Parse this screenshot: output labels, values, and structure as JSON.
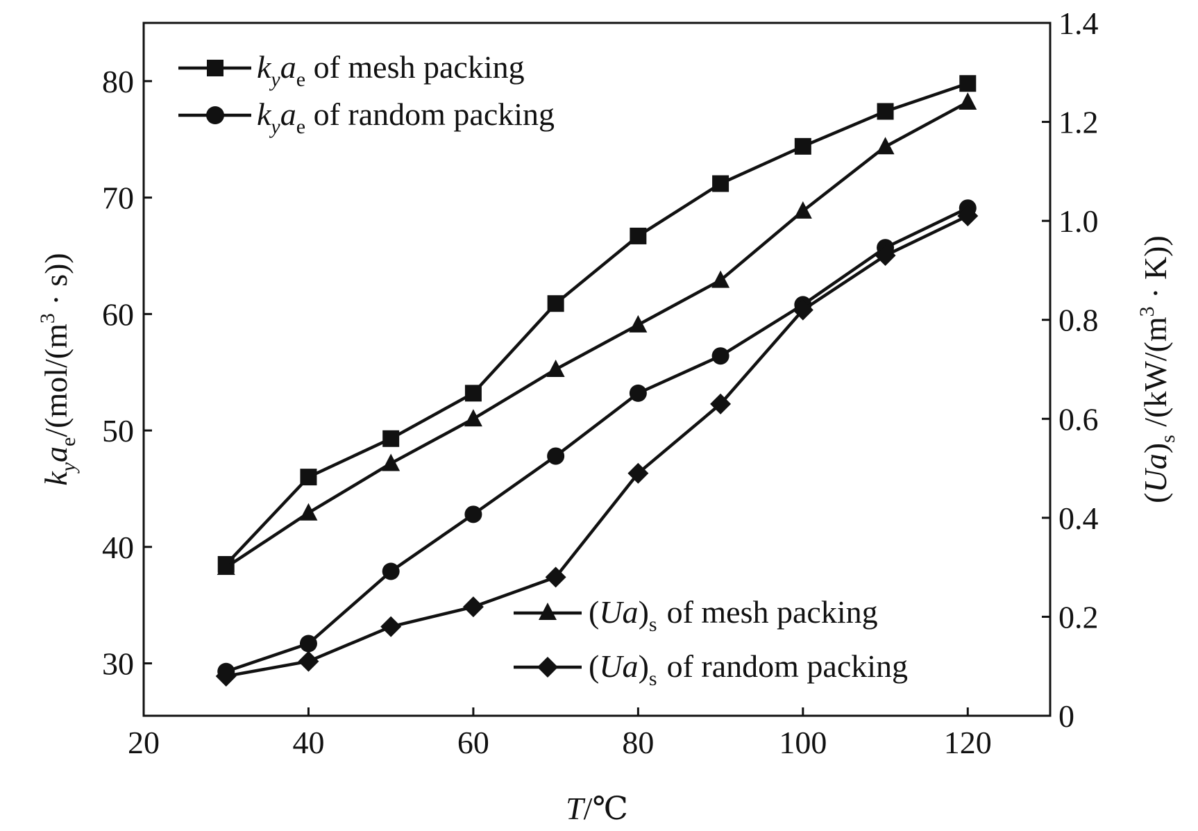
{
  "chart_data": {
    "type": "line",
    "x": [
      30,
      40,
      50,
      60,
      70,
      80,
      90,
      100,
      110,
      120
    ],
    "xlim": [
      20,
      130
    ],
    "xticks": [
      "20",
      "40",
      "60",
      "80",
      "100",
      "120"
    ],
    "xtick_values": [
      20,
      40,
      60,
      80,
      100,
      120
    ],
    "xlabel": {
      "var": "T",
      "unit": "/℃"
    },
    "y_left": {
      "ylim": [
        25.5,
        85
      ],
      "ticks": [
        "30",
        "40",
        "50",
        "60",
        "70",
        "80"
      ],
      "tick_values": [
        30,
        40,
        50,
        60,
        70,
        80
      ],
      "label": {
        "k": "k",
        "ksub": "y",
        "a": "a",
        "asub": "e",
        "unit": "/(mol/(m",
        "sup": "3",
        "tail": " · s))"
      }
    },
    "y_right": {
      "ylim": [
        0,
        1.4
      ],
      "ticks": [
        "0",
        "0.2",
        "0.4",
        "0.6",
        "0.8",
        "1.0",
        "1.2",
        "1.4"
      ],
      "tick_values": [
        0,
        0.2,
        0.4,
        0.6,
        0.8,
        1.0,
        1.2,
        1.4
      ],
      "label": {
        "pre": "(",
        "ua": "Ua",
        "post": ")",
        "sub": "s",
        "unit": " /(kW/(m",
        "sup": "3",
        "tail": " · K))"
      }
    },
    "series": [
      {
        "name": "kyae of mesh packing",
        "legend": {
          "k": "k",
          "ksub": "y",
          "a": "a",
          "asub": "e",
          "rest": " of mesh packing"
        },
        "axis": "left",
        "marker": "square",
        "values": [
          38.5,
          46.0,
          49.3,
          53.2,
          60.9,
          66.7,
          71.2,
          74.4,
          77.4,
          79.8
        ]
      },
      {
        "name": "kyae of random packing",
        "legend": {
          "k": "k",
          "ksub": "y",
          "a": "a",
          "asub": "e",
          "rest": " of random packing"
        },
        "axis": "left",
        "marker": "circle",
        "values": [
          29.3,
          31.7,
          37.9,
          42.8,
          47.8,
          53.2,
          56.4,
          60.8,
          65.7,
          69.1
        ]
      },
      {
        "name": "(Ua)s of mesh packing",
        "legend": {
          "pre": "(",
          "ua": "Ua",
          "post": ")",
          "sub": "s",
          "rest": "of mesh packing"
        },
        "axis": "right",
        "marker": "triangle",
        "values": [
          0.3,
          0.41,
          0.51,
          0.6,
          0.7,
          0.79,
          0.88,
          1.02,
          1.15,
          1.24
        ]
      },
      {
        "name": "(Ua)s of random packing",
        "legend": {
          "pre": "(",
          "ua": "Ua",
          "post": ")",
          "sub": "s",
          "rest": "of random packing"
        },
        "axis": "right",
        "marker": "diamond",
        "values": [
          0.08,
          0.11,
          0.18,
          0.22,
          0.28,
          0.49,
          0.63,
          0.82,
          0.93,
          1.01
        ]
      }
    ],
    "legend_position": [
      "top-left",
      "bottom-right"
    ],
    "grid": false
  }
}
